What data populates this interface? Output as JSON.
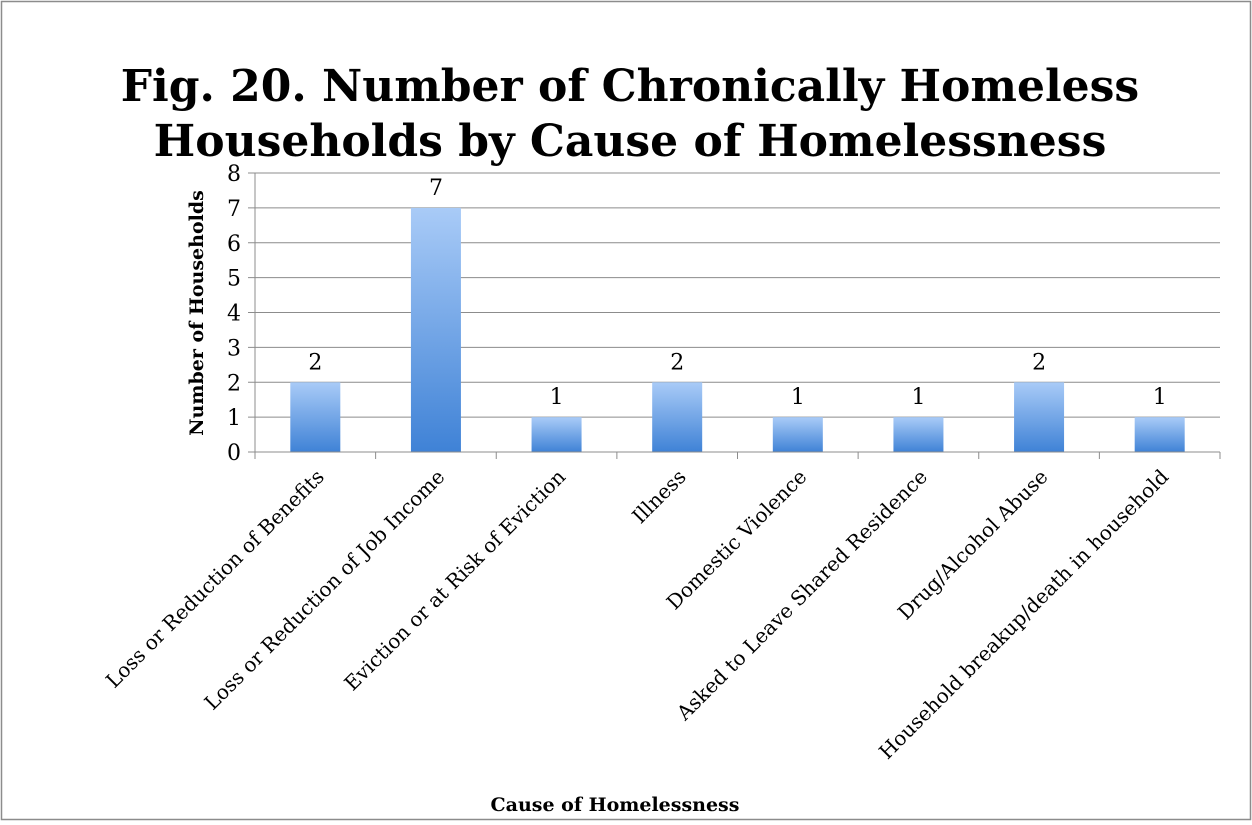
{
  "chart_data": {
    "type": "bar",
    "title_lines": [
      "Fig. 20. Number of Chronically Homeless",
      "Households by Cause of Homelessness"
    ],
    "xlabel": "Cause of Homelessness",
    "ylabel": "Number of Households",
    "categories": [
      "Loss or Reduction of Benefits",
      "Loss or Reduction of Job Income",
      "Eviction or at Risk of Eviction",
      "Illness",
      "Domestic Violence",
      "Asked to Leave Shared Residence",
      "Drug/Alcohol Abuse",
      "Household breakup/death in household"
    ],
    "values": [
      2,
      7,
      1,
      2,
      1,
      1,
      2,
      1
    ],
    "ylim": [
      0,
      8
    ],
    "yticks": [
      0,
      1,
      2,
      3,
      4,
      5,
      6,
      7,
      8
    ],
    "grid": true,
    "legend": "none",
    "data_labels": true,
    "colors": {
      "bar_top": "#a9cbf7",
      "bar_bottom": "#3f82d6",
      "grid": "#8c8c8c",
      "axis": "#8c8c8c",
      "text": "#000000",
      "frame": "#8c8c8c"
    }
  }
}
